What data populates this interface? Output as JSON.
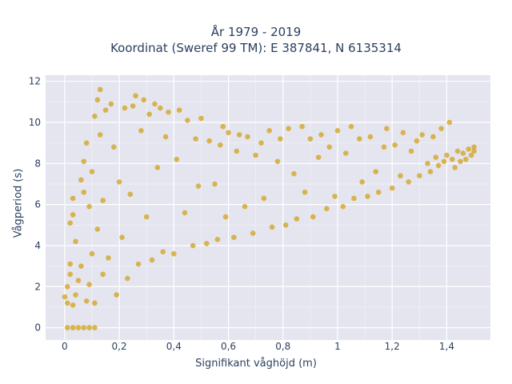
{
  "chart_data": {
    "type": "scatter",
    "title": "År 1979 - 2019",
    "subtitle": "Koordinat (Sweref 99 TM): E 387841, N 6135314",
    "xlabel": "Signifikant våghöjd (m)",
    "ylabel": "Vågperiod (s)",
    "xlim": [
      -0.07,
      1.56
    ],
    "ylim": [
      -0.6,
      12.3
    ],
    "x_ticks": [
      0,
      0.2,
      0.4,
      0.6,
      0.8,
      1,
      1.2,
      1.4
    ],
    "x_tick_labels": [
      "0",
      "0,2",
      "0,4",
      "0,6",
      "0,8",
      "1",
      "1,2",
      "1,4"
    ],
    "y_ticks": [
      0,
      2,
      4,
      6,
      8,
      10,
      12
    ],
    "y_tick_labels": [
      "0",
      "2",
      "4",
      "6",
      "8",
      "10",
      "12"
    ],
    "grid": true,
    "background": "#e5e5f0",
    "marker_color": "#d4a521",
    "marker_opacity": 0.78,
    "points": [
      [
        0.01,
        0.0
      ],
      [
        0.03,
        0.0
      ],
      [
        0.05,
        0.0
      ],
      [
        0.07,
        0.0
      ],
      [
        0.09,
        0.0
      ],
      [
        0.11,
        0.0
      ],
      [
        0.0,
        1.5
      ],
      [
        0.01,
        2.0
      ],
      [
        0.01,
        1.2
      ],
      [
        0.02,
        2.6
      ],
      [
        0.02,
        3.1
      ],
      [
        0.03,
        1.1
      ],
      [
        0.02,
        5.1
      ],
      [
        0.03,
        6.3
      ],
      [
        0.03,
        5.5
      ],
      [
        0.04,
        1.6
      ],
      [
        0.04,
        4.2
      ],
      [
        0.05,
        2.3
      ],
      [
        0.06,
        7.2
      ],
      [
        0.06,
        3.0
      ],
      [
        0.07,
        8.1
      ],
      [
        0.07,
        6.6
      ],
      [
        0.08,
        9.0
      ],
      [
        0.08,
        1.3
      ],
      [
        0.09,
        2.1
      ],
      [
        0.09,
        5.9
      ],
      [
        0.1,
        3.6
      ],
      [
        0.1,
        7.6
      ],
      [
        0.11,
        10.3
      ],
      [
        0.11,
        1.2
      ],
      [
        0.12,
        11.1
      ],
      [
        0.12,
        4.8
      ],
      [
        0.13,
        11.6
      ],
      [
        0.13,
        9.4
      ],
      [
        0.14,
        6.2
      ],
      [
        0.14,
        2.6
      ],
      [
        0.15,
        10.6
      ],
      [
        0.16,
        3.4
      ],
      [
        0.17,
        10.9
      ],
      [
        0.18,
        8.8
      ],
      [
        0.19,
        1.6
      ],
      [
        0.2,
        7.1
      ],
      [
        0.21,
        4.4
      ],
      [
        0.22,
        10.7
      ],
      [
        0.23,
        2.4
      ],
      [
        0.24,
        6.5
      ],
      [
        0.25,
        10.8
      ],
      [
        0.26,
        11.3
      ],
      [
        0.27,
        3.1
      ],
      [
        0.28,
        9.6
      ],
      [
        0.29,
        11.1
      ],
      [
        0.3,
        5.4
      ],
      [
        0.31,
        10.4
      ],
      [
        0.32,
        3.3
      ],
      [
        0.33,
        10.9
      ],
      [
        0.34,
        7.8
      ],
      [
        0.35,
        10.7
      ],
      [
        0.36,
        3.7
      ],
      [
        0.37,
        9.3
      ],
      [
        0.38,
        10.5
      ],
      [
        0.4,
        3.6
      ],
      [
        0.41,
        8.2
      ],
      [
        0.42,
        10.6
      ],
      [
        0.44,
        5.6
      ],
      [
        0.45,
        10.1
      ],
      [
        0.47,
        4.0
      ],
      [
        0.48,
        9.2
      ],
      [
        0.49,
        6.9
      ],
      [
        0.5,
        10.2
      ],
      [
        0.52,
        4.1
      ],
      [
        0.53,
        9.1
      ],
      [
        0.55,
        7.0
      ],
      [
        0.56,
        4.3
      ],
      [
        0.57,
        8.9
      ],
      [
        0.58,
        9.8
      ],
      [
        0.59,
        5.4
      ],
      [
        0.6,
        9.5
      ],
      [
        0.62,
        4.4
      ],
      [
        0.63,
        8.6
      ],
      [
        0.64,
        9.4
      ],
      [
        0.66,
        5.9
      ],
      [
        0.67,
        9.3
      ],
      [
        0.69,
        4.6
      ],
      [
        0.7,
        8.4
      ],
      [
        0.72,
        9.0
      ],
      [
        0.73,
        6.3
      ],
      [
        0.75,
        9.6
      ],
      [
        0.76,
        4.9
      ],
      [
        0.78,
        8.1
      ],
      [
        0.79,
        9.2
      ],
      [
        0.81,
        5.0
      ],
      [
        0.82,
        9.7
      ],
      [
        0.84,
        7.5
      ],
      [
        0.85,
        5.3
      ],
      [
        0.87,
        9.8
      ],
      [
        0.88,
        6.6
      ],
      [
        0.9,
        9.2
      ],
      [
        0.91,
        5.4
      ],
      [
        0.93,
        8.3
      ],
      [
        0.94,
        9.4
      ],
      [
        0.96,
        5.8
      ],
      [
        0.97,
        8.8
      ],
      [
        0.99,
        6.4
      ],
      [
        1.0,
        9.6
      ],
      [
        1.02,
        5.9
      ],
      [
        1.03,
        8.5
      ],
      [
        1.05,
        9.8
      ],
      [
        1.06,
        6.3
      ],
      [
        1.08,
        9.2
      ],
      [
        1.09,
        7.1
      ],
      [
        1.11,
        6.4
      ],
      [
        1.12,
        9.3
      ],
      [
        1.14,
        7.6
      ],
      [
        1.15,
        6.6
      ],
      [
        1.17,
        8.8
      ],
      [
        1.18,
        9.7
      ],
      [
        1.2,
        6.8
      ],
      [
        1.21,
        8.9
      ],
      [
        1.23,
        7.4
      ],
      [
        1.24,
        9.5
      ],
      [
        1.26,
        7.1
      ],
      [
        1.27,
        8.6
      ],
      [
        1.29,
        9.1
      ],
      [
        1.3,
        7.4
      ],
      [
        1.31,
        9.4
      ],
      [
        1.33,
        8.0
      ],
      [
        1.34,
        7.6
      ],
      [
        1.35,
        9.3
      ],
      [
        1.36,
        8.3
      ],
      [
        1.37,
        7.9
      ],
      [
        1.38,
        9.7
      ],
      [
        1.39,
        8.1
      ],
      [
        1.4,
        8.4
      ],
      [
        1.41,
        10.0
      ],
      [
        1.42,
        8.2
      ],
      [
        1.43,
        7.8
      ],
      [
        1.44,
        8.6
      ],
      [
        1.45,
        8.1
      ],
      [
        1.46,
        8.5
      ],
      [
        1.47,
        8.2
      ],
      [
        1.48,
        8.7
      ],
      [
        1.49,
        8.4
      ],
      [
        1.5,
        8.6
      ],
      [
        1.5,
        8.8
      ]
    ]
  }
}
